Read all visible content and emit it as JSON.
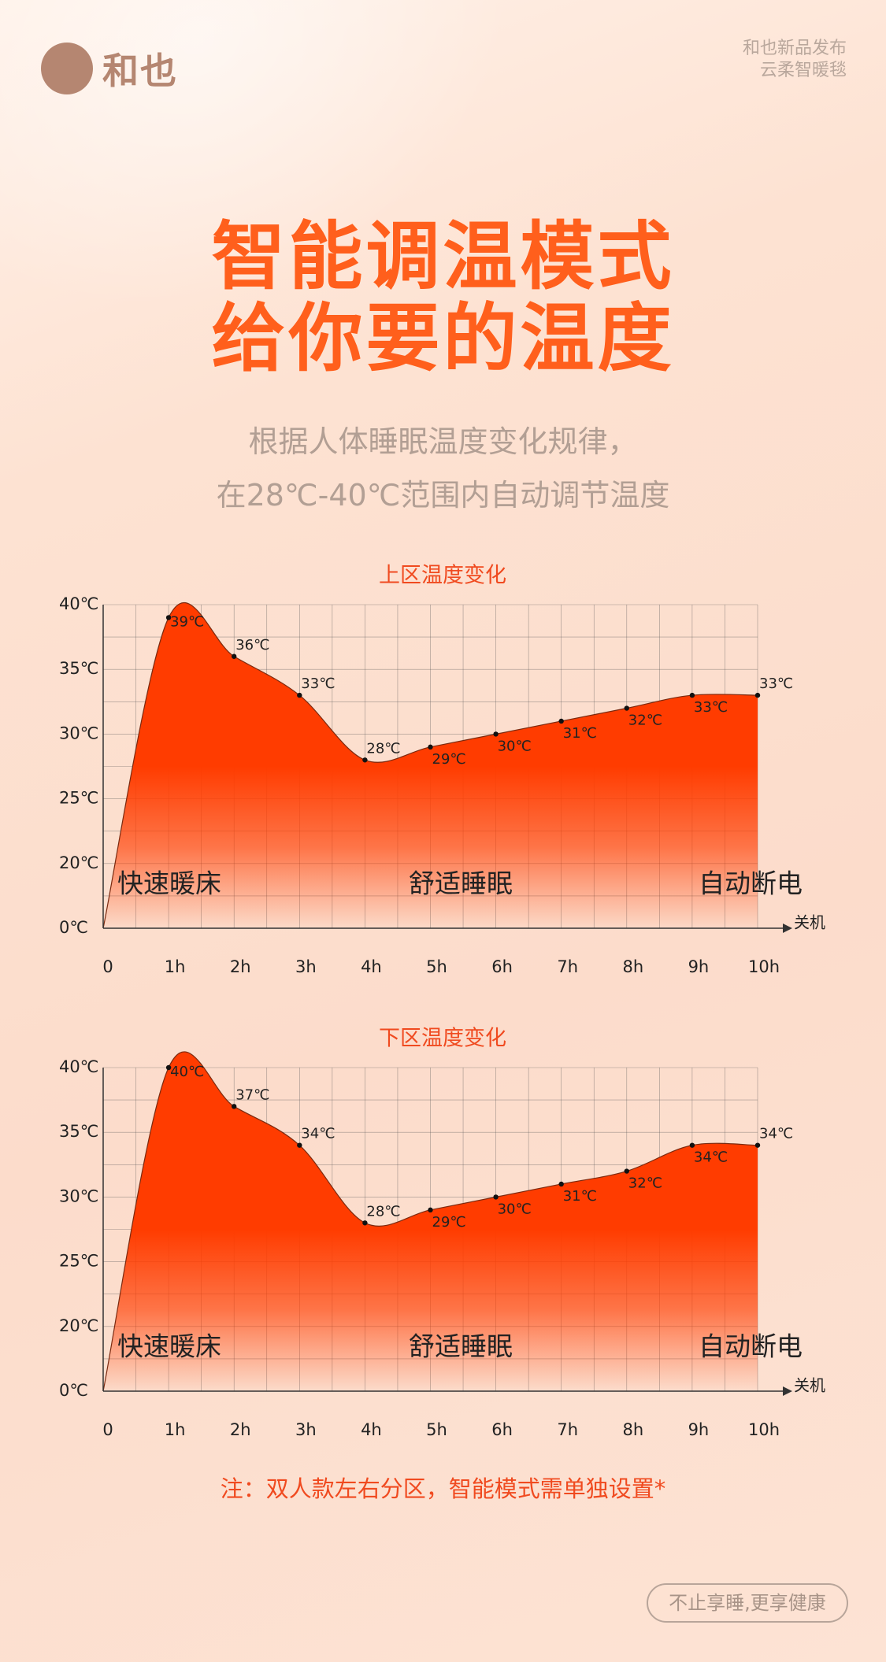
{
  "header": {
    "brand": "和也",
    "corner_line1": "和也新品发布",
    "corner_line2": "云柔智暖毯",
    "title_line1": "智能调温模式",
    "title_line2": "给你要的温度",
    "subtitle_line1": "根据人体睡眠温度变化规律，",
    "subtitle_line2": "在28℃-40℃范围内自动调节温度"
  },
  "chart_data": [
    {
      "type": "area",
      "title": "上区温度变化",
      "categories": [
        "0",
        "1h",
        "2h",
        "3h",
        "4h",
        "5h",
        "6h",
        "7h",
        "8h",
        "9h",
        "10h"
      ],
      "values": [
        0,
        39,
        36,
        33,
        28,
        29,
        30,
        31,
        32,
        33,
        33
      ],
      "value_labels": [
        null,
        "39℃",
        "36℃",
        "33℃",
        "28℃",
        "29℃",
        "30℃",
        "31℃",
        "32℃",
        "33℃",
        "33℃"
      ],
      "color": "#ff3c00",
      "ylim": [
        0,
        40
      ],
      "yticks": [
        {
          "value": 0,
          "label": "0℃"
        },
        {
          "value": 20,
          "label": "20℃"
        },
        {
          "value": 25,
          "label": "25℃"
        },
        {
          "value": 30,
          "label": "30℃"
        },
        {
          "value": 35,
          "label": "35℃"
        },
        {
          "value": 40,
          "label": "40℃"
        }
      ],
      "grid": true,
      "x_end_label": "关机",
      "annotations": [
        "快速暖床",
        "舒适睡眠",
        "自动断电"
      ]
    },
    {
      "type": "area",
      "title": "下区温度变化",
      "categories": [
        "0",
        "1h",
        "2h",
        "3h",
        "4h",
        "5h",
        "6h",
        "7h",
        "8h",
        "9h",
        "10h"
      ],
      "values": [
        0,
        40,
        37,
        34,
        28,
        29,
        30,
        31,
        32,
        34,
        34
      ],
      "value_labels": [
        null,
        "40℃",
        "37℃",
        "34℃",
        "28℃",
        "29℃",
        "30℃",
        "31℃",
        "32℃",
        "34℃",
        "34℃"
      ],
      "color": "#ff3c00",
      "ylim": [
        0,
        40
      ],
      "yticks": [
        {
          "value": 0,
          "label": "0℃"
        },
        {
          "value": 20,
          "label": "20℃"
        },
        {
          "value": 25,
          "label": "25℃"
        },
        {
          "value": 30,
          "label": "30℃"
        },
        {
          "value": 35,
          "label": "35℃"
        },
        {
          "value": 40,
          "label": "40℃"
        }
      ],
      "grid": true,
      "x_end_label": "关机",
      "annotations": [
        "快速暖床",
        "舒适睡眠",
        "自动断电"
      ]
    }
  ],
  "footer": {
    "note": "注：双人款左右分区，智能模式需单独设置*",
    "slogan": "不止享睡,更享健康"
  }
}
